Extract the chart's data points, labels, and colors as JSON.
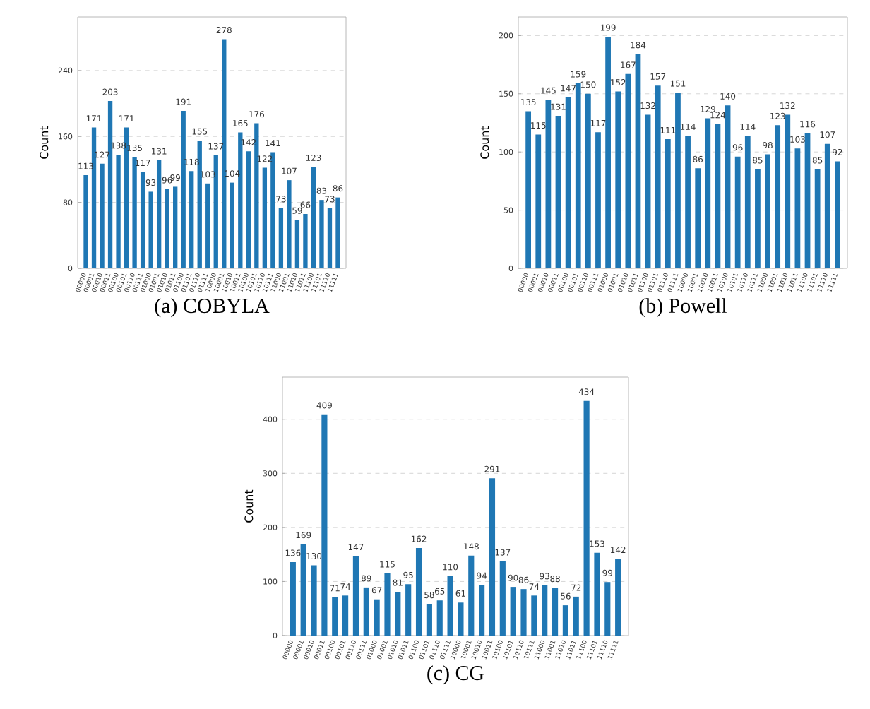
{
  "chart_data": [
    {
      "type": "bar",
      "xlabel": "(a) COBYLA",
      "ylabel": "Count",
      "categories": [
        "00000",
        "00001",
        "00010",
        "00011",
        "00100",
        "00101",
        "00110",
        "00111",
        "01000",
        "01001",
        "01010",
        "01011",
        "01100",
        "01101",
        "01110",
        "01111",
        "10000",
        "10001",
        "10010",
        "10011",
        "10100",
        "10101",
        "10110",
        "10111",
        "11000",
        "11001",
        "11010",
        "11011",
        "11100",
        "11101",
        "11110",
        "11111"
      ],
      "values": [
        113,
        171,
        127,
        203,
        138,
        171,
        135,
        117,
        93,
        131,
        96,
        99,
        191,
        118,
        155,
        103,
        137,
        278,
        104,
        165,
        142,
        176,
        122,
        141,
        73,
        107,
        59,
        66,
        123,
        83,
        73,
        86
      ],
      "color": "#1f77b4",
      "ylim": [
        0,
        305
      ],
      "yticks": [
        0,
        80,
        160,
        240
      ],
      "grid": "y",
      "data_labels": true
    },
    {
      "type": "bar",
      "xlabel": "(b) Powell",
      "ylabel": "Count",
      "categories": [
        "00000",
        "00001",
        "00010",
        "00011",
        "00100",
        "00101",
        "00110",
        "00111",
        "01000",
        "01001",
        "01010",
        "01011",
        "01100",
        "01101",
        "01110",
        "01111",
        "10000",
        "10001",
        "10010",
        "10011",
        "10100",
        "10101",
        "10110",
        "10111",
        "11000",
        "11001",
        "11010",
        "11011",
        "11100",
        "11101",
        "11110",
        "11111"
      ],
      "values": [
        135,
        115,
        145,
        131,
        147,
        159,
        150,
        117,
        199,
        152,
        167,
        184,
        132,
        157,
        111,
        151,
        114,
        86,
        129,
        124,
        140,
        96,
        114,
        85,
        98,
        123,
        132,
        103,
        116,
        85,
        107,
        92
      ],
      "color": "#1f77b4",
      "ylim": [
        0,
        216
      ],
      "yticks": [
        0,
        50,
        100,
        150,
        200
      ],
      "grid": "y",
      "data_labels": true
    },
    {
      "type": "bar",
      "xlabel": "(c) CG",
      "ylabel": "Count",
      "categories": [
        "00000",
        "00001",
        "00010",
        "00011",
        "00100",
        "00101",
        "00110",
        "00111",
        "01000",
        "01001",
        "01010",
        "01011",
        "01100",
        "01101",
        "01110",
        "01111",
        "10000",
        "10001",
        "10010",
        "10011",
        "10100",
        "10101",
        "10110",
        "10111",
        "11000",
        "11001",
        "11010",
        "11011",
        "11100",
        "11101",
        "11110",
        "11111"
      ],
      "values": [
        136,
        169,
        130,
        409,
        71,
        74,
        147,
        89,
        67,
        115,
        81,
        95,
        162,
        58,
        65,
        110,
        61,
        148,
        94,
        291,
        137,
        90,
        86,
        74,
        93,
        88,
        56,
        72,
        434,
        153,
        99,
        142
      ],
      "color": "#1f77b4",
      "ylim": [
        0,
        478
      ],
      "yticks": [
        0,
        100,
        200,
        300,
        400
      ],
      "grid": "y",
      "data_labels": true
    }
  ]
}
